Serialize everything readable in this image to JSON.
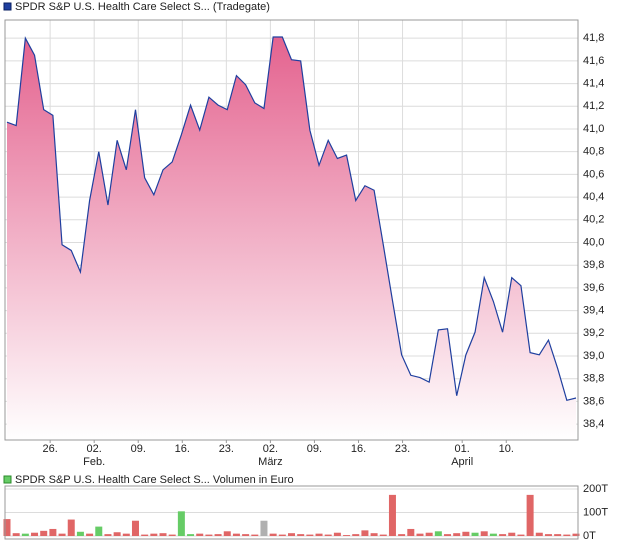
{
  "chart_data": [
    {
      "type": "area",
      "series": [
        {
          "name": "SPDR S&P U.S. Health Care Select S... (Tradegate)",
          "color": "#1f3f9f",
          "values": [
            41.06,
            41.03,
            41.8,
            41.65,
            41.17,
            41.12,
            39.98,
            39.93,
            39.74,
            40.37,
            40.8,
            40.33,
            40.9,
            40.64,
            41.17,
            40.57,
            40.42,
            40.64,
            40.71,
            40.95,
            41.21,
            40.99,
            41.28,
            41.21,
            41.17,
            41.47,
            41.39,
            41.23,
            41.18,
            41.81,
            41.81,
            41.61,
            41.6,
            40.99,
            40.68,
            40.9,
            40.74,
            40.77,
            40.37,
            40.5,
            40.46,
            39.98,
            39.49,
            39.01,
            38.83,
            38.81,
            38.77,
            39.23,
            39.24,
            38.65,
            39.01,
            39.21,
            39.69,
            39.48,
            39.21,
            39.69,
            39.62,
            39.03,
            39.01,
            39.14,
            38.89,
            38.61,
            38.63
          ]
        }
      ],
      "xlim": [
        0,
        62
      ],
      "xticks": [
        {
          "value": 4.7,
          "label": "26."
        },
        {
          "value": 9.5,
          "label": "02."
        },
        {
          "value": 14.3,
          "label": "09."
        },
        {
          "value": 19.1,
          "label": "16."
        },
        {
          "value": 23.9,
          "label": "23."
        },
        {
          "value": 28.7,
          "label": "02."
        },
        {
          "value": 33.5,
          "label": "09."
        },
        {
          "value": 38.3,
          "label": "16."
        },
        {
          "value": 43.1,
          "label": "23."
        },
        {
          "value": 49.6,
          "label": "01."
        },
        {
          "value": 54.4,
          "label": "10."
        }
      ],
      "month_labels": [
        {
          "value": 9.5,
          "label": "Feb."
        },
        {
          "value": 28.7,
          "label": "März"
        },
        {
          "value": 49.6,
          "label": "April"
        }
      ],
      "ylim": [
        38.26,
        41.96
      ],
      "yticks": [
        {
          "value": 38.4,
          "label": "38,4"
        },
        {
          "value": 38.6,
          "label": "38,6"
        },
        {
          "value": 38.8,
          "label": "38,8"
        },
        {
          "value": 39.0,
          "label": "39,0"
        },
        {
          "value": 39.2,
          "label": "39,2"
        },
        {
          "value": 39.4,
          "label": "39,4"
        },
        {
          "value": 39.6,
          "label": "39,6"
        },
        {
          "value": 39.8,
          "label": "39,8"
        },
        {
          "value": 40.0,
          "label": "40,0"
        },
        {
          "value": 40.2,
          "label": "40,2"
        },
        {
          "value": 40.4,
          "label": "40,4"
        },
        {
          "value": 40.6,
          "label": "40,6"
        },
        {
          "value": 40.8,
          "label": "40,8"
        },
        {
          "value": 41.0,
          "label": "41,0"
        },
        {
          "value": 41.2,
          "label": "41,2"
        },
        {
          "value": 41.4,
          "label": "41,4"
        },
        {
          "value": 41.6,
          "label": "41,6"
        },
        {
          "value": 41.8,
          "label": "41,8"
        }
      ],
      "fill_color": "#e4638f",
      "grid": true
    },
    {
      "type": "bar",
      "series": [
        {
          "name": "SPDR S&P U.S. Health Care Select S... Volumen in Euro",
          "values": [
            72000,
            12000,
            10000,
            14000,
            22000,
            30000,
            10000,
            70000,
            18000,
            10000,
            40000,
            8000,
            16000,
            10000,
            65000,
            6000,
            10000,
            12000,
            6000,
            105000,
            8000,
            10000,
            6000,
            8000,
            20000,
            10000,
            8000,
            6000,
            65000,
            10000,
            6000,
            12000,
            8000,
            6000,
            10000,
            6000,
            14000,
            4000,
            8000,
            24000,
            12000,
            6000,
            175000,
            8000,
            30000,
            10000,
            14000,
            20000,
            8000,
            12000,
            18000,
            14000,
            20000,
            10000,
            8000,
            14000,
            6000,
            175000,
            14000,
            8000,
            8000,
            6000,
            10000
          ],
          "colors": [
            "#e06666",
            "#e06666",
            "#66cc66",
            "#e06666",
            "#e06666",
            "#e06666",
            "#e06666",
            "#e06666",
            "#66cc66",
            "#e06666",
            "#66cc66",
            "#e06666",
            "#e06666",
            "#e06666",
            "#e06666",
            "#e06666",
            "#e06666",
            "#e06666",
            "#e06666",
            "#66cc66",
            "#66cc66",
            "#e06666",
            "#e06666",
            "#e06666",
            "#e06666",
            "#e06666",
            "#e06666",
            "#e06666",
            "#b0b0b0",
            "#e06666",
            "#e06666",
            "#e06666",
            "#e06666",
            "#e06666",
            "#e06666",
            "#e06666",
            "#e06666",
            "#e06666",
            "#e06666",
            "#e06666",
            "#e06666",
            "#e06666",
            "#e06666",
            "#e06666",
            "#e06666",
            "#e06666",
            "#e06666",
            "#66cc66",
            "#e06666",
            "#e06666",
            "#e06666",
            "#66cc66",
            "#e06666",
            "#66cc66",
            "#e06666",
            "#e06666",
            "#e06666",
            "#e06666",
            "#e06666",
            "#e06666",
            "#e06666",
            "#e06666",
            "#e06666"
          ]
        }
      ],
      "xlim": [
        0,
        62
      ],
      "ylim": [
        0,
        200000
      ],
      "yticks": [
        {
          "value": 0,
          "label": "0T"
        },
        {
          "value": 100000,
          "label": "100T"
        },
        {
          "value": 200000,
          "label": "200T"
        }
      ],
      "grid": true
    }
  ]
}
